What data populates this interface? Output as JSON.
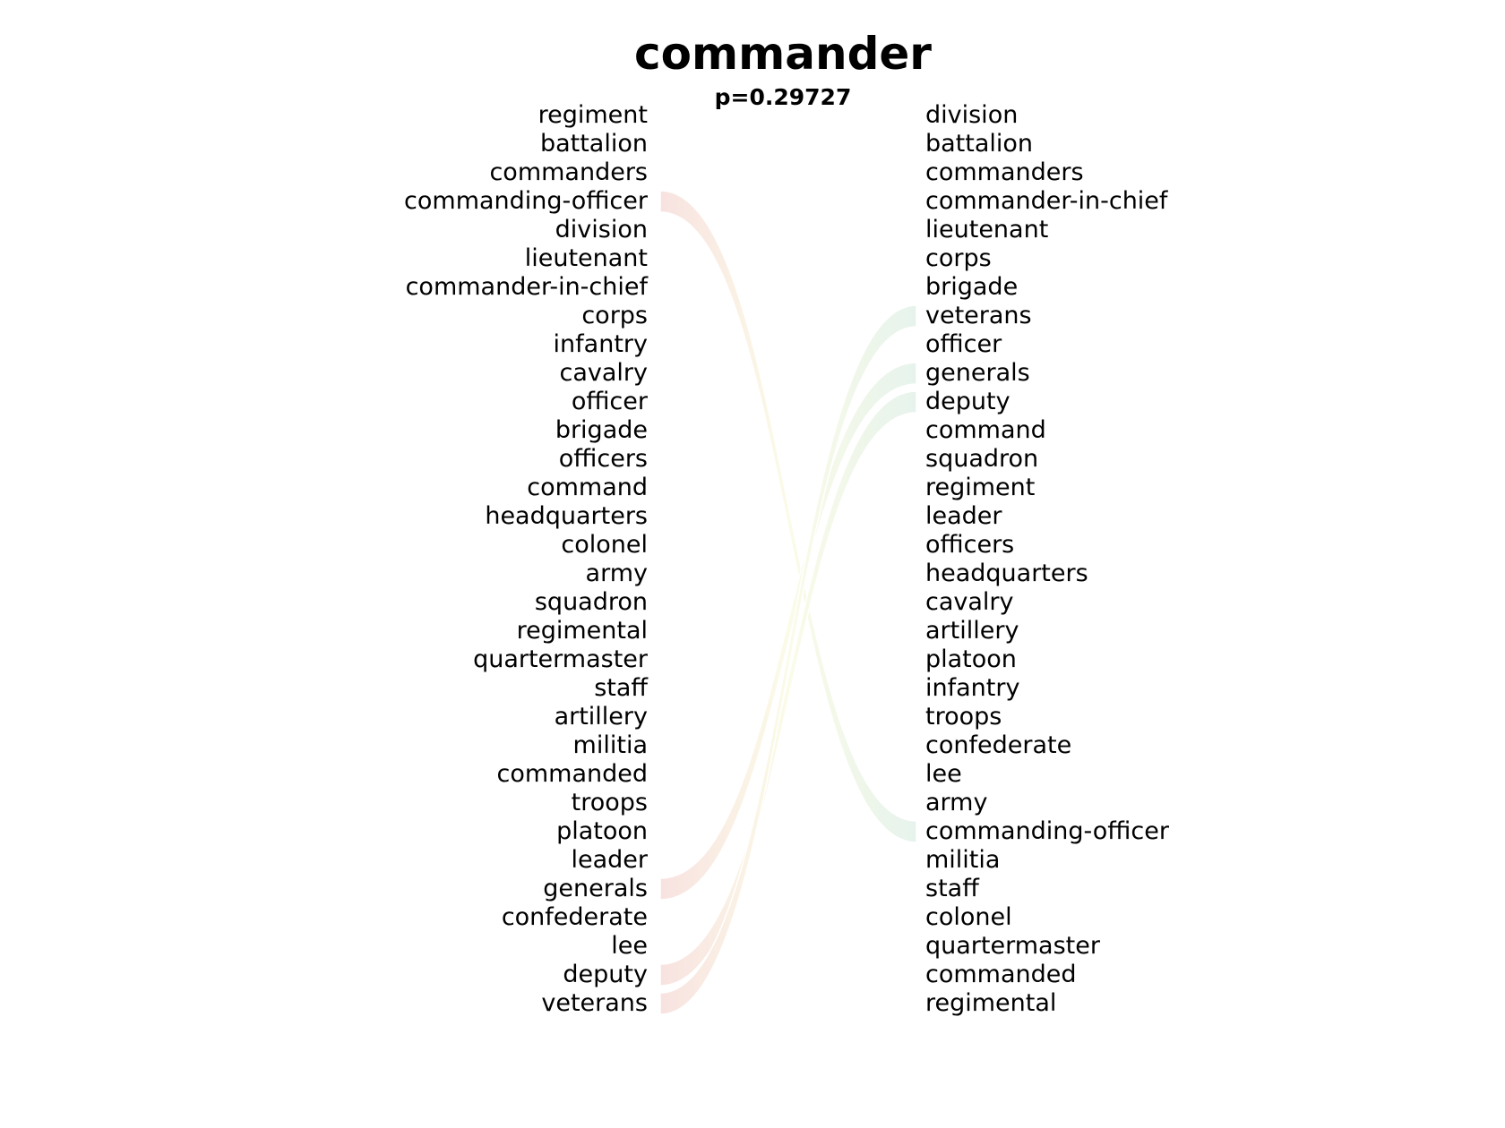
{
  "title": "commander",
  "subtitle": "p=0.29727",
  "left_words": [
    "regiment",
    "battalion",
    "commanders",
    "commanding-officer",
    "division",
    "lieutenant",
    "commander-in-chief",
    "corps",
    "infantry",
    "cavalry",
    "officer",
    "brigade",
    "officers",
    "command",
    "headquarters",
    "colonel",
    "army",
    "squadron",
    "regimental",
    "quartermaster",
    "staff",
    "artillery",
    "militia",
    "commanded",
    "troops",
    "platoon",
    "leader",
    "generals",
    "confederate",
    "lee",
    "deputy",
    "veterans"
  ],
  "right_words": [
    "division",
    "battalion",
    "commanders",
    "commander-in-chief",
    "lieutenant",
    "corps",
    "brigade",
    "veterans",
    "officer",
    "generals",
    "deputy",
    "command",
    "squadron",
    "regiment",
    "leader",
    "officers",
    "headquarters",
    "cavalry",
    "artillery",
    "platoon",
    "infantry",
    "troops",
    "confederate",
    "lee",
    "army",
    "commanding-officer",
    "militia",
    "staff",
    "colonel",
    "quartermaster",
    "commanded",
    "regimental"
  ],
  "links": [
    {
      "word": "commanding-officer",
      "left_rank": 4,
      "right_rank": 26,
      "start_color": "#f8e2e0",
      "end_color": "#e6f3ec"
    },
    {
      "word": "generals",
      "left_rank": 28,
      "right_rank": 10,
      "start_color": "#f8e2e0",
      "end_color": "#e6f3ec"
    },
    {
      "word": "deputy",
      "left_rank": 31,
      "right_rank": 11,
      "start_color": "#f8e2e0",
      "end_color": "#e6f3ec"
    },
    {
      "word": "veterans",
      "left_rank": 32,
      "right_rank": 8,
      "start_color": "#f8e2e0",
      "end_color": "#e6f3ec"
    }
  ]
}
